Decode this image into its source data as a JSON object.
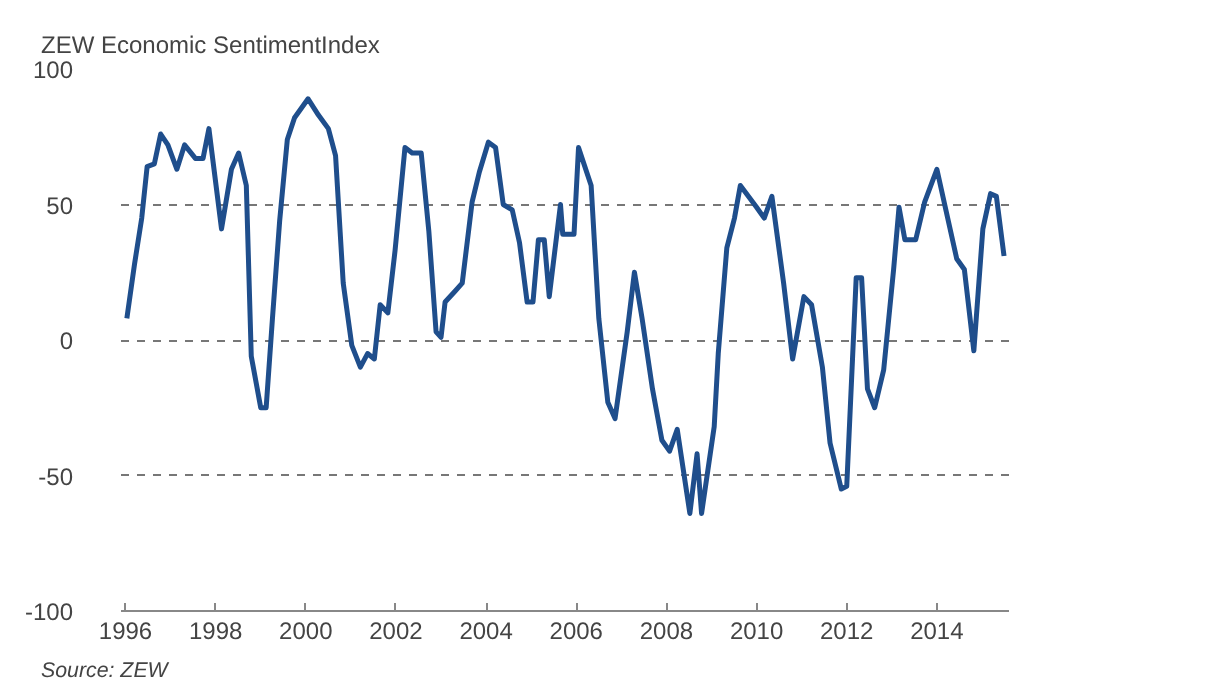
{
  "chart_data": {
    "type": "line",
    "title": "ZEW Economic SentimentIndex",
    "annotations": [
      "Source: ZEW"
    ],
    "x": [
      1996.03,
      1996.2,
      1996.36,
      1996.48,
      1996.64,
      1996.78,
      1996.94,
      1997.14,
      1997.31,
      1997.55,
      1997.72,
      1997.85,
      1998.13,
      1998.35,
      1998.51,
      1998.68,
      1998.79,
      1999.0,
      1999.12,
      1999.26,
      1999.42,
      1999.59,
      1999.75,
      2000.05,
      2000.28,
      2000.5,
      2000.66,
      2000.83,
      2001.02,
      2001.21,
      2001.37,
      2001.52,
      2001.65,
      2001.82,
      2001.98,
      2002.2,
      2002.36,
      2002.56,
      2002.73,
      2002.89,
      2003.0,
      2003.09,
      2003.31,
      2003.47,
      2003.69,
      2003.85,
      2004.05,
      2004.21,
      2004.38,
      2004.58,
      2004.74,
      2004.91,
      2005.04,
      2005.16,
      2005.29,
      2005.4,
      2005.65,
      2005.7,
      2005.95,
      2006.05,
      2006.33,
      2006.5,
      2006.7,
      2006.86,
      2007.13,
      2007.29,
      2007.46,
      2007.69,
      2007.9,
      2008.07,
      2008.24,
      2008.52,
      2008.68,
      2008.78,
      2009.06,
      2009.15,
      2009.34,
      2009.51,
      2009.64,
      2010.0,
      2010.17,
      2010.34,
      2010.6,
      2010.8,
      2011.05,
      2011.22,
      2011.46,
      2011.63,
      2011.88,
      2012.0,
      2012.21,
      2012.33,
      2012.46,
      2012.62,
      2012.82,
      2013.04,
      2013.16,
      2013.29,
      2013.53,
      2013.73,
      2014.0,
      2014.2,
      2014.44,
      2014.61,
      2014.82,
      2015.02,
      2015.19,
      2015.32,
      2015.49
    ],
    "series": [
      {
        "color": "#1f4e8c",
        "values": [
          8,
          28,
          45,
          64,
          65,
          76,
          72,
          63,
          72,
          67,
          67,
          78,
          41,
          63,
          69,
          57,
          -6,
          -25,
          -25,
          8,
          44,
          74,
          82,
          89,
          83,
          78,
          68,
          21,
          -2,
          -10,
          -5,
          -7,
          13,
          10,
          33,
          71,
          69,
          69,
          40,
          3,
          1,
          14,
          18,
          21,
          51,
          62,
          73,
          71,
          50,
          48,
          36,
          14,
          14,
          37,
          37,
          16,
          50,
          39,
          39,
          71,
          57,
          8,
          -23,
          -29,
          3,
          25,
          8,
          -18,
          -37,
          -41,
          -33,
          -64,
          -42,
          -64,
          -32,
          -5,
          34,
          45,
          57,
          49,
          45,
          53,
          21,
          -7,
          16,
          13,
          -10,
          -38,
          -55,
          -54,
          23,
          23,
          -18,
          -25,
          -11,
          26,
          49,
          37,
          37,
          51,
          63,
          48,
          30,
          26,
          -4,
          41,
          54,
          53,
          31
        ]
      }
    ],
    "xlim": [
      1995.9,
      2015.6
    ],
    "ylim": [
      -100,
      100
    ],
    "xticks": [
      1996,
      1998,
      2000,
      2002,
      2004,
      2006,
      2008,
      2010,
      2012,
      2014
    ],
    "yticks": [
      -100,
      -50,
      0,
      50,
      100
    ],
    "grid": "y",
    "line_style": "solid",
    "marker": "none"
  }
}
